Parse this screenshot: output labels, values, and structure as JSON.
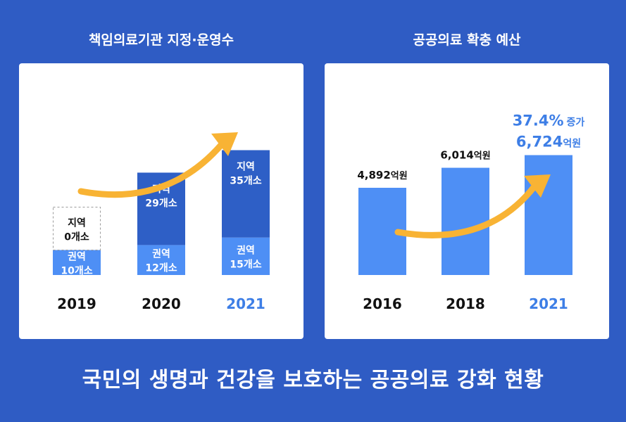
{
  "colors": {
    "background": "#2f5cc4",
    "card": "#ffffff",
    "bar_dark": "#2e5fc6",
    "bar_light": "#4e8ff5",
    "arrow": "#f8b334",
    "highlight_text": "#3d7ee6",
    "text_dark": "#111111",
    "text_white": "#ffffff"
  },
  "footer": {
    "title": "국민의 생명과 건강을 보호하는 공공의료 강화 현황"
  },
  "chart_data": [
    {
      "type": "bar",
      "stacked": true,
      "title": "책임의료기관 지정·운영수",
      "categories": [
        "2019",
        "2020",
        "2021"
      ],
      "highlight_category": "2021",
      "series": [
        {
          "name": "권역",
          "values": [
            10,
            12,
            15
          ],
          "labels": [
            [
              "권역",
              "10개소"
            ],
            [
              "권역",
              "12개소"
            ],
            [
              "권역",
              "15개소"
            ]
          ]
        },
        {
          "name": "지역",
          "values": [
            0,
            29,
            35
          ],
          "labels": [
            [
              "지역",
              "0개소"
            ],
            [
              "지역",
              "29개소"
            ],
            [
              "지역",
              "35개소"
            ]
          ]
        }
      ],
      "trend_arrow": true
    },
    {
      "type": "bar",
      "title": "공공의료 확충 예산",
      "categories": [
        "2016",
        "2018",
        "2021"
      ],
      "highlight_category": "2021",
      "values": [
        4892,
        6014,
        6724
      ],
      "unit": "억원",
      "value_numbers": [
        "4,892",
        "6,014",
        "6,724"
      ],
      "annotation": {
        "value": "37.4%",
        "label": "증가"
      },
      "trend_arrow": true
    }
  ]
}
